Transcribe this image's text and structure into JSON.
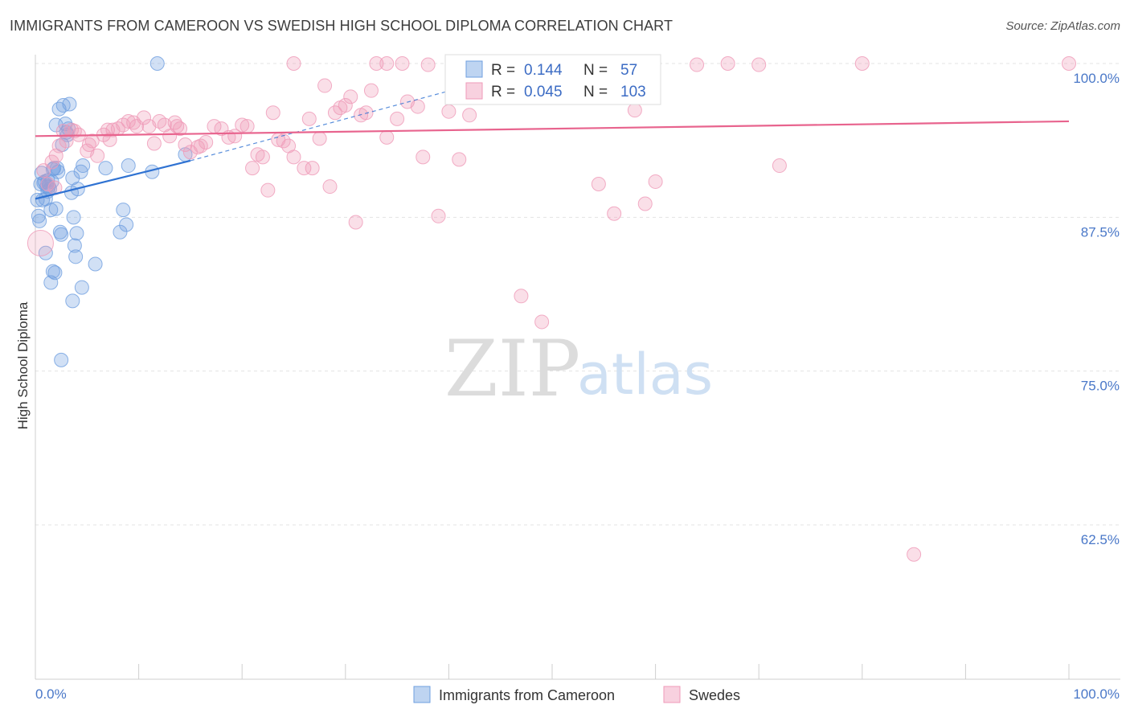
{
  "title": "IMMIGRANTS FROM CAMEROON VS SWEDISH HIGH SCHOOL DIPLOMA CORRELATION CHART",
  "source": "Source: ZipAtlas.com",
  "watermark": {
    "zip": "ZIP",
    "atlas": "atlas"
  },
  "chart_data": {
    "type": "scatter",
    "ylabel": "High School Diploma",
    "xlabel": "",
    "xlim": [
      0,
      100
    ],
    "ylim": [
      52,
      101
    ],
    "y_ticks": [
      {
        "value": 100.0,
        "label": "100.0%"
      },
      {
        "value": 87.5,
        "label": "87.5%"
      },
      {
        "value": 75.0,
        "label": "75.0%"
      },
      {
        "value": 62.5,
        "label": "62.5%"
      }
    ],
    "x_tick_labels": {
      "left": "0.0%",
      "right": "100.0%"
    },
    "colors": {
      "blue": "#6f9fe0",
      "blue_line": "#2f72d2",
      "pink": "#ef9ab8",
      "pink_line": "#e8648e",
      "grid": "#e3e3e3"
    },
    "stats": [
      {
        "series": "Immigrants from Cameroon",
        "r_label": "R =",
        "r": "0.144",
        "n_label": "N =",
        "n": "57"
      },
      {
        "series": "Swedes",
        "r_label": "R =",
        "r": "0.045",
        "n_label": "N =",
        "n": "103"
      }
    ],
    "series": [
      {
        "name": "Immigrants from Cameroon",
        "color": "blue",
        "trend": {
          "x0": 0,
          "y0": 89.0,
          "x1": 15,
          "y1": 92.1
        },
        "trend_dashed": {
          "x0": 15,
          "y0": 92.1,
          "x1": 45,
          "y1": 98.9
        },
        "points": [
          [
            0.2,
            88.9
          ],
          [
            0.3,
            87.6
          ],
          [
            0.4,
            87.2
          ],
          [
            0.5,
            90.2
          ],
          [
            0.6,
            91.1
          ],
          [
            0.7,
            88.9
          ],
          [
            0.8,
            90.3
          ],
          [
            0.9,
            90.4
          ],
          [
            1.0,
            89.0
          ],
          [
            1.1,
            90.0
          ],
          [
            1.2,
            90.5
          ],
          [
            1.3,
            90.0
          ],
          [
            1.4,
            89.8
          ],
          [
            1.5,
            88.1
          ],
          [
            1.6,
            90.4
          ],
          [
            1.7,
            91.4
          ],
          [
            1.8,
            91.5
          ],
          [
            2.0,
            95.0
          ],
          [
            2.1,
            91.5
          ],
          [
            2.2,
            91.2
          ],
          [
            2.3,
            96.3
          ],
          [
            2.4,
            86.3
          ],
          [
            2.5,
            86.1
          ],
          [
            2.6,
            93.4
          ],
          [
            2.7,
            96.6
          ],
          [
            2.9,
            95.1
          ],
          [
            3.0,
            94.4
          ],
          [
            3.1,
            94.2
          ],
          [
            3.2,
            94.7
          ],
          [
            3.3,
            96.7
          ],
          [
            3.5,
            89.5
          ],
          [
            3.6,
            90.7
          ],
          [
            3.7,
            87.5
          ],
          [
            3.8,
            85.2
          ],
          [
            3.9,
            84.3
          ],
          [
            4.0,
            86.2
          ],
          [
            4.1,
            89.8
          ],
          [
            4.4,
            91.2
          ],
          [
            4.5,
            81.8
          ],
          [
            1.5,
            82.2
          ],
          [
            1.7,
            83.1
          ],
          [
            1.9,
            83.0
          ],
          [
            3.6,
            80.7
          ],
          [
            5.8,
            83.7
          ],
          [
            6.8,
            91.5
          ],
          [
            8.2,
            86.3
          ],
          [
            8.5,
            88.1
          ],
          [
            8.8,
            86.9
          ],
          [
            9.0,
            91.7
          ],
          [
            11.3,
            91.2
          ],
          [
            11.8,
            100.0
          ],
          [
            14.5,
            92.6
          ],
          [
            2.5,
            75.9
          ],
          [
            1.0,
            84.6
          ],
          [
            1.2,
            89.6
          ],
          [
            2.0,
            88.2
          ],
          [
            4.6,
            91.7
          ]
        ]
      },
      {
        "name": "Swedes",
        "color": "pink",
        "trend": {
          "x0": 0,
          "y0": 94.1,
          "x1": 100,
          "y1": 95.3
        },
        "points": [
          [
            0.5,
            85.4
          ],
          [
            0.8,
            91.3
          ],
          [
            1.2,
            90.2
          ],
          [
            1.6,
            92.0
          ],
          [
            2.0,
            92.5
          ],
          [
            2.3,
            93.3
          ],
          [
            2.7,
            94.5
          ],
          [
            3.0,
            93.7
          ],
          [
            3.5,
            94.6
          ],
          [
            3.8,
            94.5
          ],
          [
            4.2,
            94.2
          ],
          [
            5.0,
            92.9
          ],
          [
            5.5,
            93.7
          ],
          [
            6.0,
            92.5
          ],
          [
            6.6,
            94.2
          ],
          [
            7.0,
            94.6
          ],
          [
            7.5,
            94.6
          ],
          [
            8.0,
            94.7
          ],
          [
            8.5,
            95.0
          ],
          [
            9.0,
            95.3
          ],
          [
            9.5,
            95.2
          ],
          [
            10.5,
            95.6
          ],
          [
            11.0,
            94.9
          ],
          [
            11.5,
            93.5
          ],
          [
            12.0,
            95.3
          ],
          [
            12.5,
            95.0
          ],
          [
            13.0,
            94.1
          ],
          [
            13.5,
            95.2
          ],
          [
            14.0,
            94.7
          ],
          [
            14.5,
            93.4
          ],
          [
            15.0,
            92.8
          ],
          [
            15.7,
            93.2
          ],
          [
            16.5,
            93.6
          ],
          [
            17.3,
            94.9
          ],
          [
            18.0,
            94.7
          ],
          [
            18.7,
            94.0
          ],
          [
            19.3,
            94.1
          ],
          [
            20.0,
            95.0
          ],
          [
            20.5,
            94.9
          ],
          [
            21.0,
            91.5
          ],
          [
            21.5,
            92.6
          ],
          [
            22.0,
            92.4
          ],
          [
            22.5,
            89.7
          ],
          [
            23.0,
            96.0
          ],
          [
            23.5,
            93.8
          ],
          [
            24.0,
            93.7
          ],
          [
            24.5,
            93.3
          ],
          [
            25.0,
            92.4
          ],
          [
            26.0,
            91.5
          ],
          [
            26.5,
            95.5
          ],
          [
            27.5,
            93.9
          ],
          [
            28.0,
            98.2
          ],
          [
            28.5,
            90.0
          ],
          [
            29.0,
            96.0
          ],
          [
            29.5,
            96.4
          ],
          [
            30.0,
            96.6
          ],
          [
            30.5,
            97.3
          ],
          [
            31.0,
            87.1
          ],
          [
            31.5,
            95.8
          ],
          [
            32.0,
            96.0
          ],
          [
            32.5,
            97.8
          ],
          [
            33.0,
            100.0
          ],
          [
            34.0,
            94.0
          ],
          [
            35.0,
            95.5
          ],
          [
            36.0,
            96.9
          ],
          [
            37.0,
            96.5
          ],
          [
            37.5,
            92.4
          ],
          [
            38.0,
            99.9
          ],
          [
            39.0,
            87.6
          ],
          [
            40.0,
            96.1
          ],
          [
            41.0,
            92.2
          ],
          [
            42.0,
            95.8
          ],
          [
            43.0,
            100.0
          ],
          [
            45.0,
            99.9
          ],
          [
            47.0,
            81.1
          ],
          [
            49.0,
            79.0
          ],
          [
            52.0,
            99.8
          ],
          [
            54.0,
            100.0
          ],
          [
            54.5,
            90.2
          ],
          [
            56.0,
            87.8
          ],
          [
            57.0,
            99.9
          ],
          [
            58.0,
            96.2
          ],
          [
            59.0,
            88.6
          ],
          [
            60.0,
            90.4
          ],
          [
            64.0,
            99.9
          ],
          [
            67.0,
            100.0
          ],
          [
            70.0,
            99.9
          ],
          [
            72.0,
            91.7
          ],
          [
            80.0,
            100.0
          ],
          [
            85.0,
            60.1
          ],
          [
            100.0,
            100.0
          ],
          [
            25.0,
            100.0
          ],
          [
            34.0,
            100.0
          ],
          [
            35.5,
            100.0
          ],
          [
            45.5,
            100.0
          ],
          [
            52.5,
            100.0
          ],
          [
            13.7,
            94.9
          ],
          [
            16.0,
            93.3
          ],
          [
            9.8,
            94.9
          ],
          [
            7.2,
            93.8
          ],
          [
            5.2,
            93.4
          ],
          [
            26.8,
            91.5
          ],
          [
            1.9,
            89.9
          ]
        ]
      }
    ]
  },
  "legend": [
    {
      "label": "Immigrants from Cameroon",
      "color": "blue"
    },
    {
      "label": "Swedes",
      "color": "pink"
    }
  ]
}
